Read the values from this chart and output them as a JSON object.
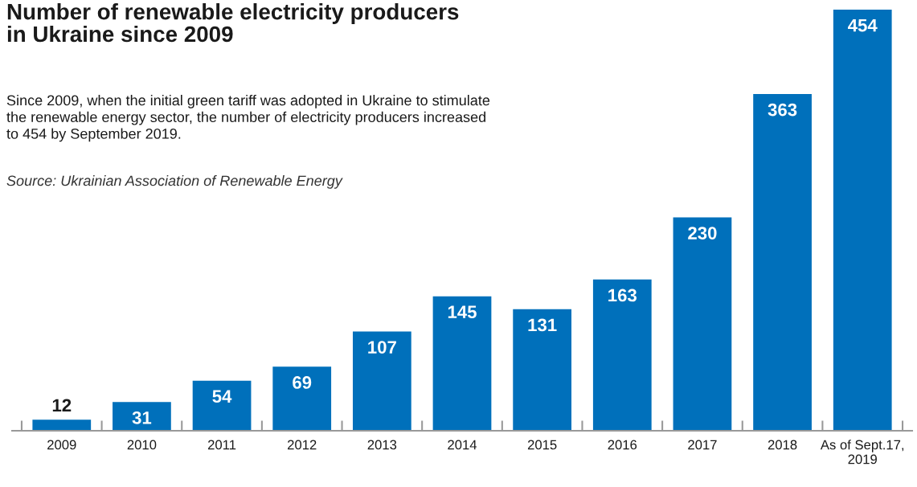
{
  "chart_data": {
    "type": "bar",
    "title": "Number of renewable electricity producers\nin Ukraine since 2009",
    "subtitle": "Since 2009, when the initial green tariff was adopted in Ukraine to stimulate\nthe renewable energy sector, the number of electricity producers increased\nto 454 by September 2019.",
    "annotations": [
      "Source: Ukrainian Association of Renewable Energy"
    ],
    "categories": [
      "2009",
      "2010",
      "2011",
      "2012",
      "2013",
      "2014",
      "2015",
      "2016",
      "2017",
      "2018",
      "As of Sept.17, 2019"
    ],
    "values": [
      12,
      31,
      54,
      69,
      107,
      145,
      131,
      163,
      230,
      363,
      454
    ],
    "color": "#0070bb",
    "data_labels": true
  }
}
